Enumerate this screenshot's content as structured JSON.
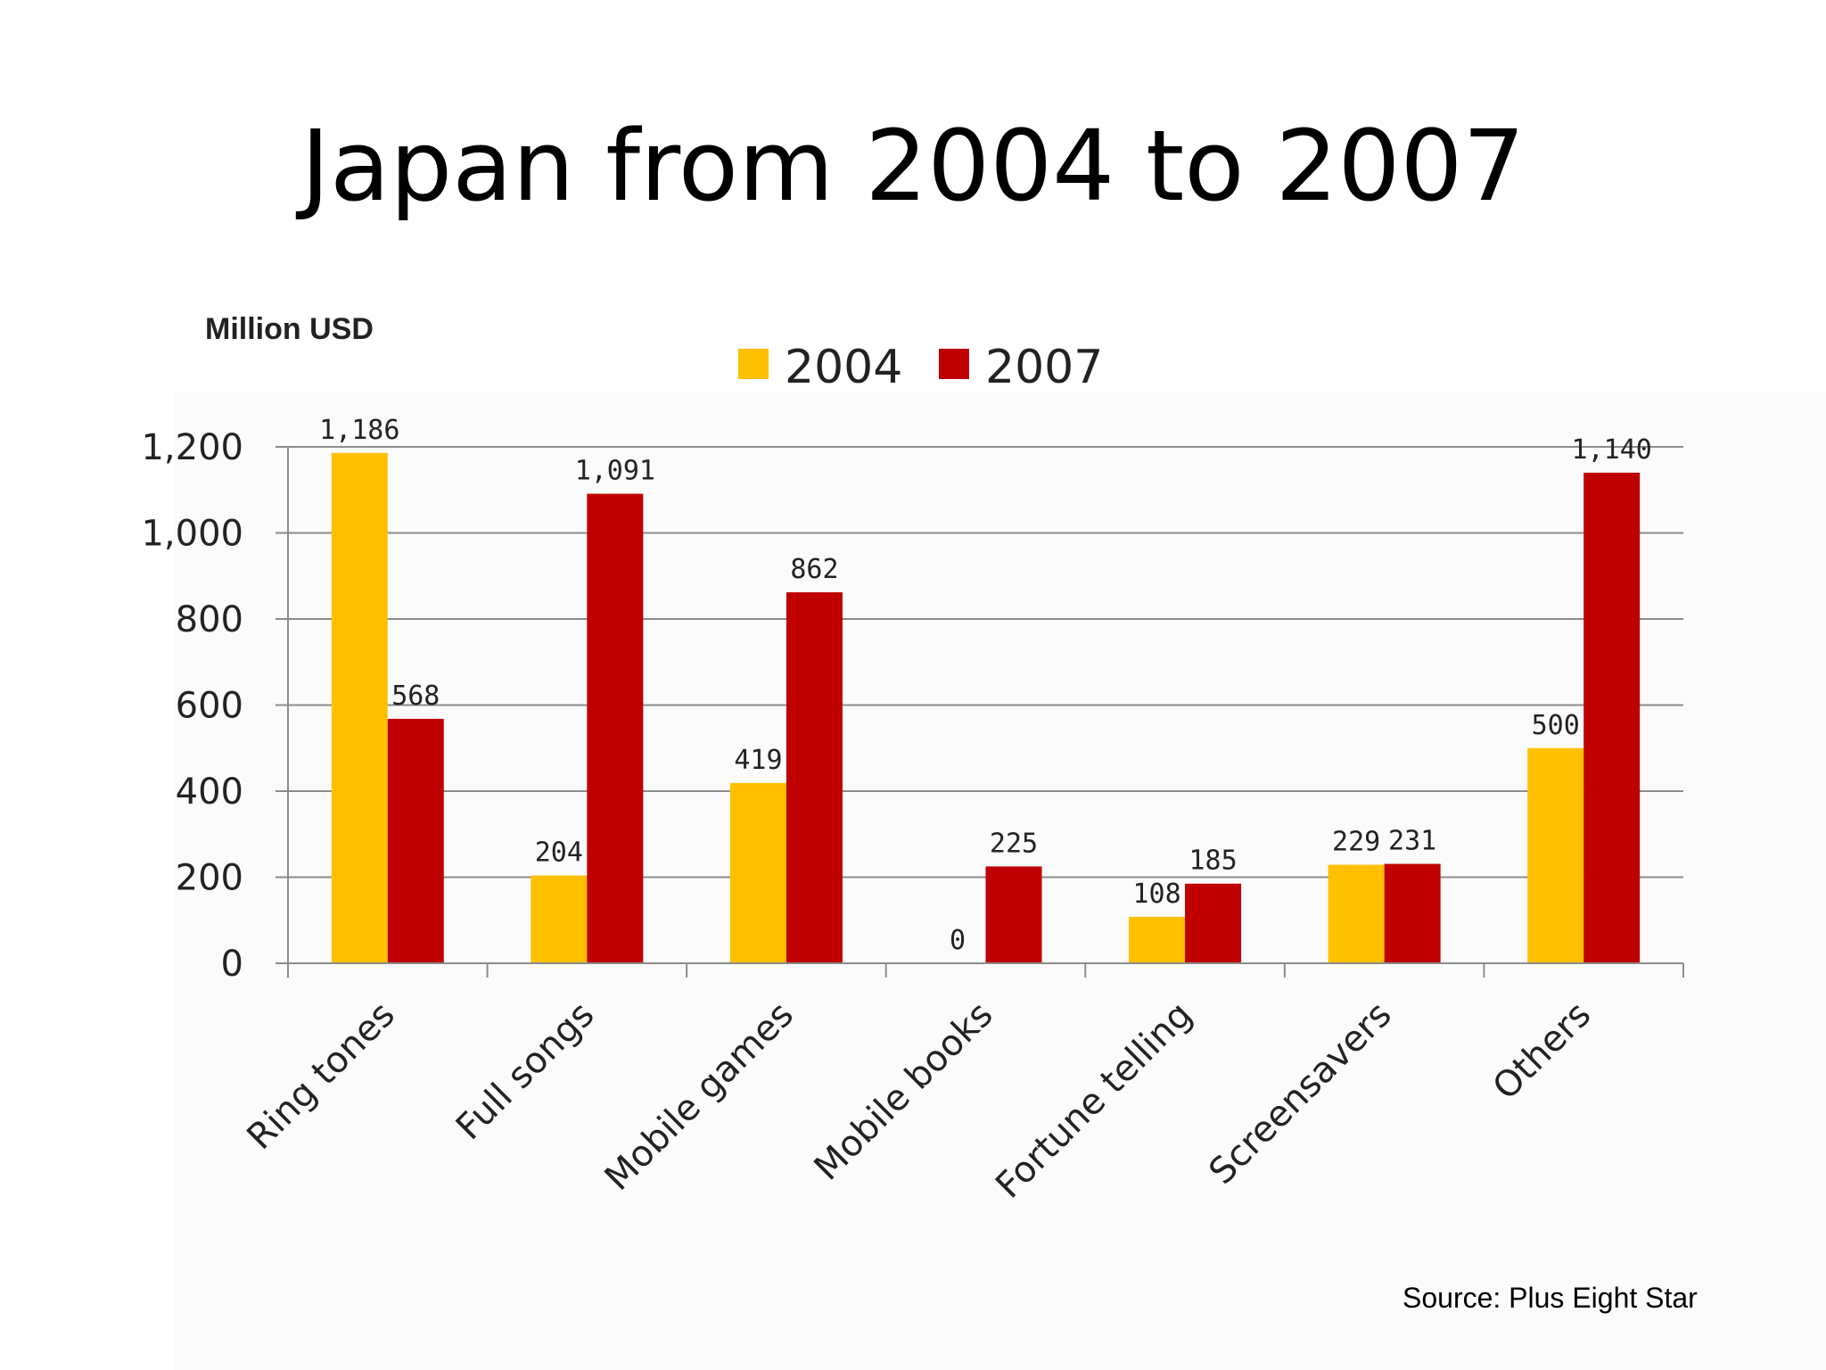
{
  "slide": {
    "title": "Japan from 2004 to 2007",
    "source": "Source: Plus Eight Star"
  },
  "chart_data": {
    "type": "bar",
    "ylabel": "Million USD",
    "categories": [
      "Ring tones",
      "Full songs",
      "Mobile games",
      "Mobile books",
      "Fortune telling",
      "Screensavers",
      "Others"
    ],
    "series": [
      {
        "name": "2004",
        "color": "#FFC000",
        "values": [
          1186,
          204,
          419,
          0,
          108,
          229,
          500
        ],
        "labels": [
          "1,186",
          "204",
          "419",
          "0",
          "108",
          "229",
          "500"
        ]
      },
      {
        "name": "2007",
        "color": "#C00000",
        "values": [
          568,
          1091,
          862,
          225,
          185,
          231,
          1140
        ],
        "labels": [
          "568",
          "1,091",
          "862",
          "225",
          "185",
          "231",
          "1,140"
        ]
      }
    ],
    "ylim": [
      0,
      1200
    ],
    "yticks": [
      0,
      200,
      400,
      600,
      800,
      1000,
      1200
    ],
    "ytick_labels": [
      "0",
      "200",
      "400",
      "600",
      "800",
      "1,000",
      "1,200"
    ],
    "grid": true,
    "legend": "top"
  }
}
